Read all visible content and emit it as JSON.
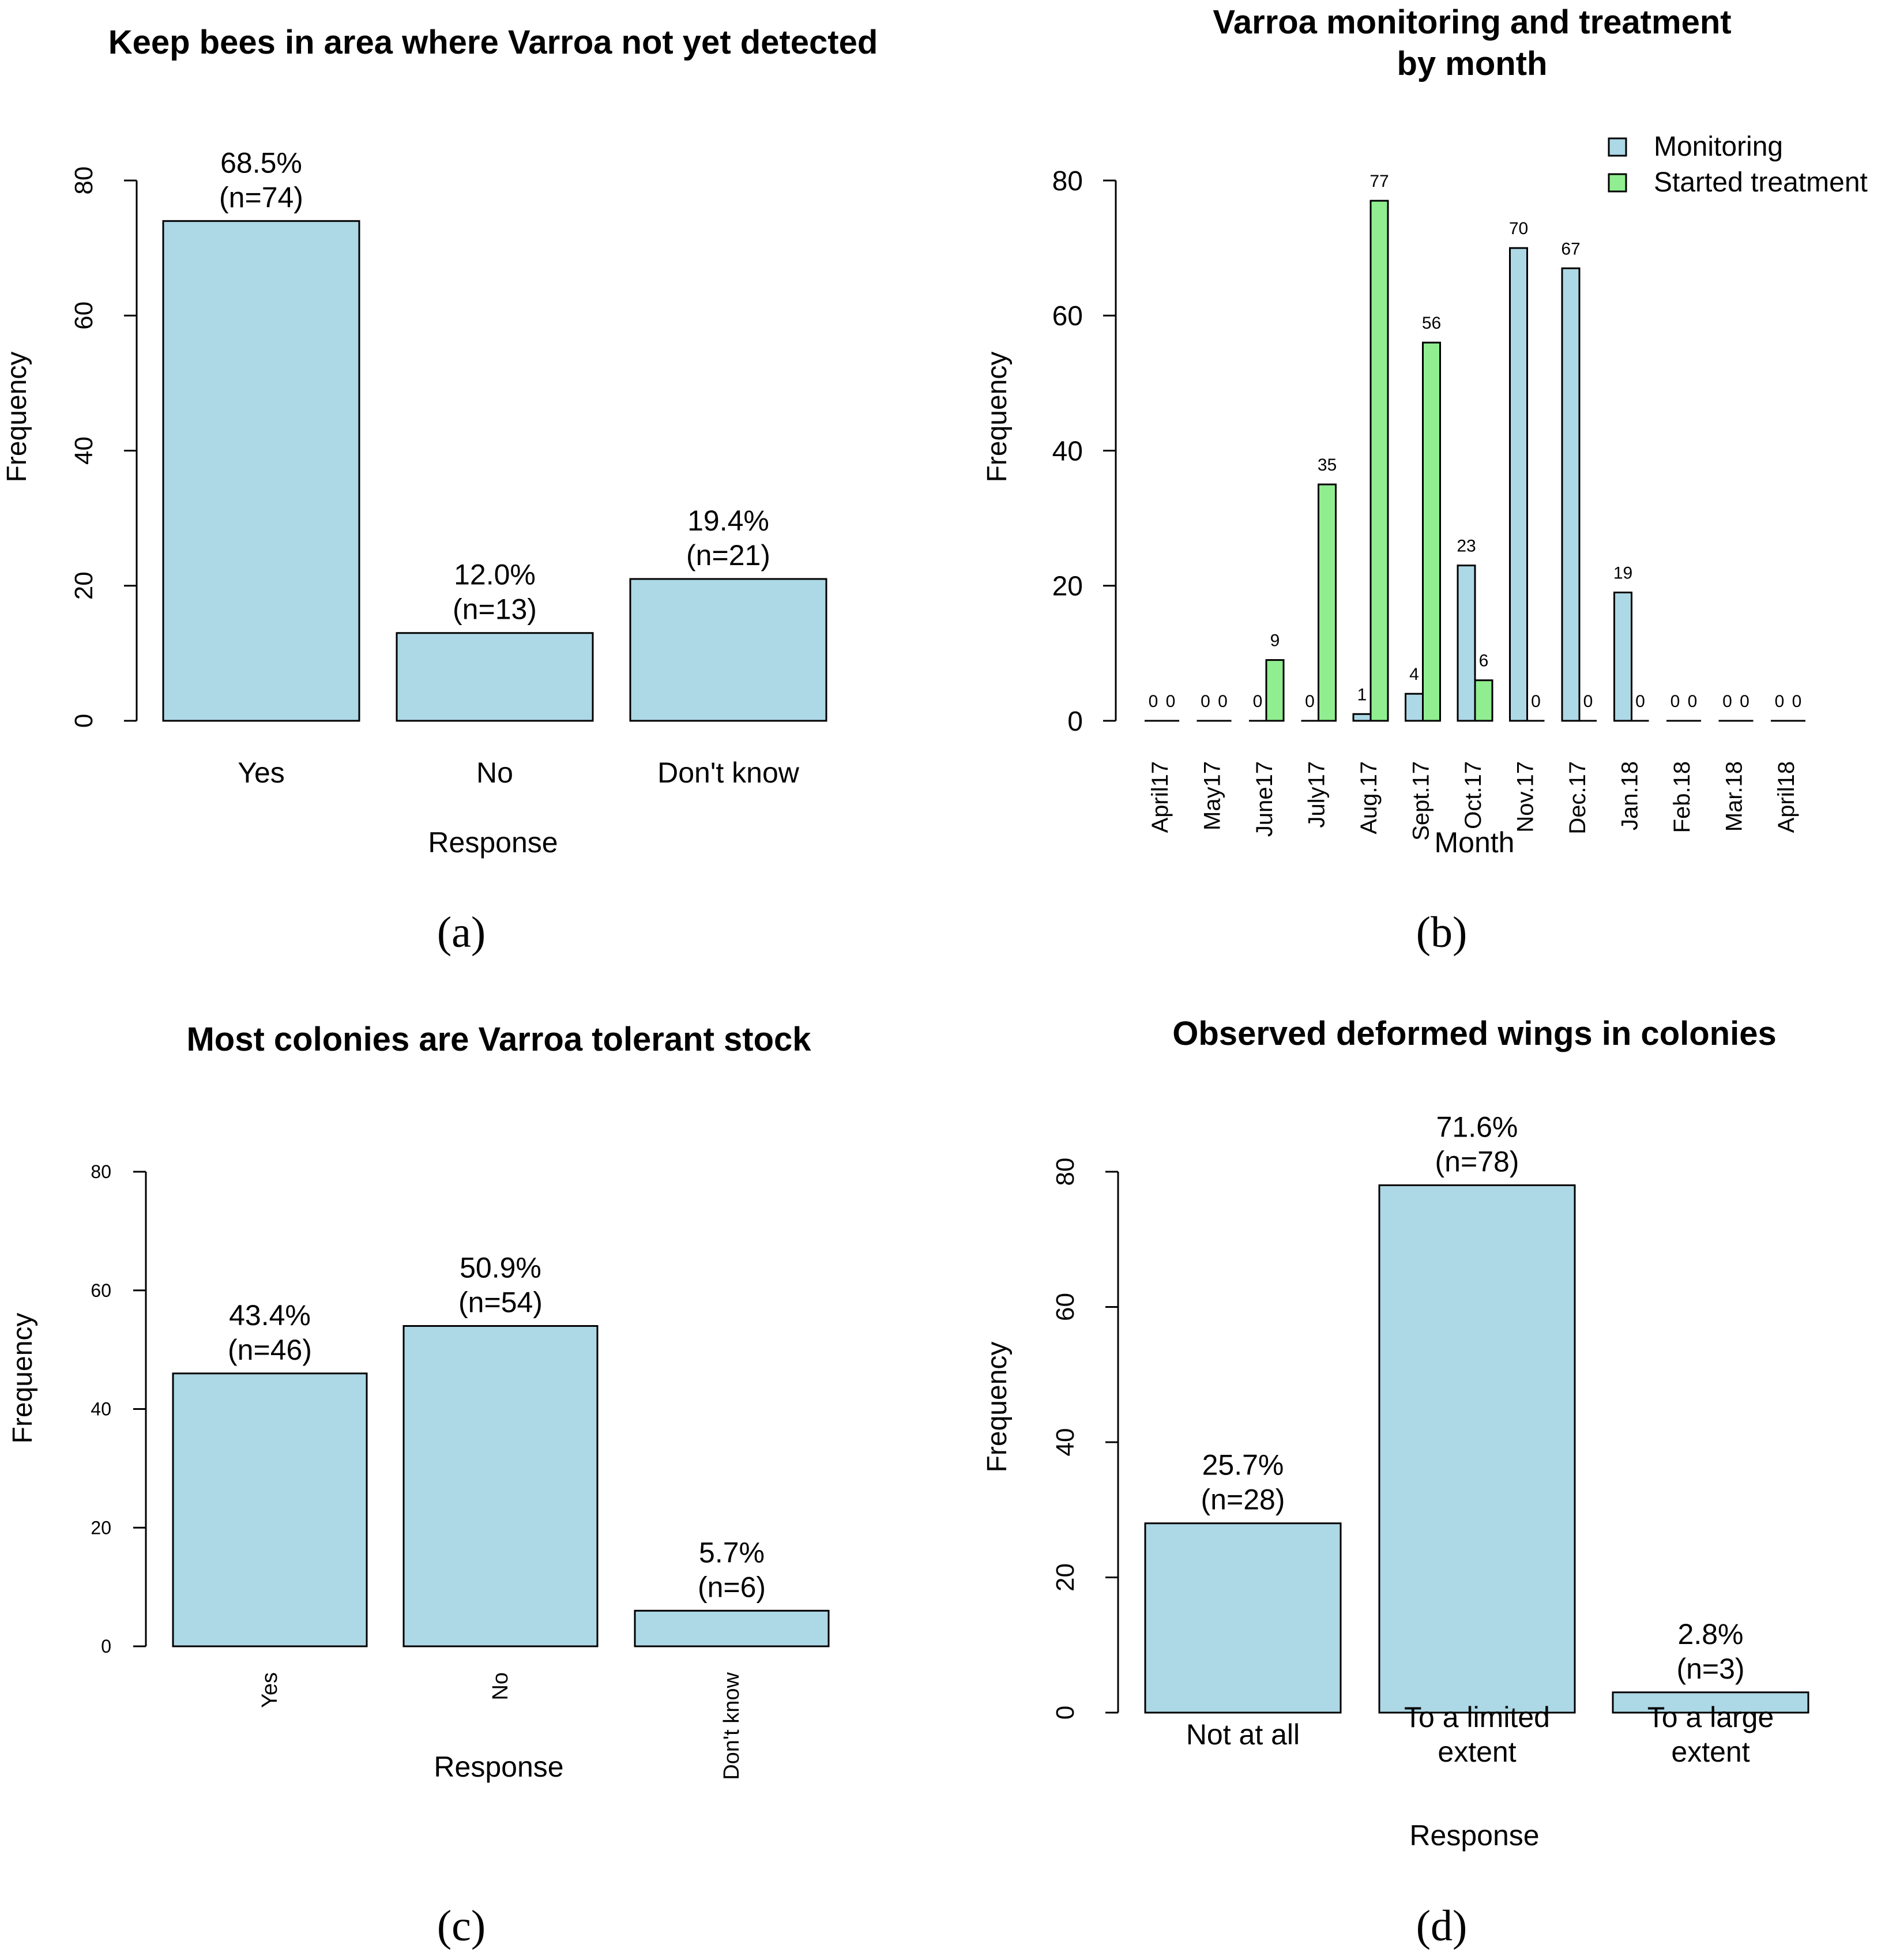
{
  "colors": {
    "monitoring": "#add8e6",
    "treatment": "#90ee90",
    "stroke": "#000000",
    "background": "#ffffff"
  },
  "chart_data": [
    {
      "id": "a",
      "panel_label": "(a)",
      "type": "bar",
      "title": "Keep bees in area where Varroa not yet detected",
      "xlabel": "Response",
      "ylabel": "Frequency",
      "ylim": [
        0,
        80
      ],
      "yticks": [
        "0",
        "20",
        "40",
        "60",
        "80"
      ],
      "categories": [
        "Yes",
        "No",
        "Don't know"
      ],
      "values": [
        74,
        13,
        21
      ],
      "percent_labels": [
        "68.5%",
        "12.0%",
        "19.4%"
      ],
      "n_labels": [
        "(n=74)",
        "(n=13)",
        "(n=21)"
      ]
    },
    {
      "id": "b",
      "panel_label": "(b)",
      "type": "bar",
      "title": "Varroa monitoring and treatment",
      "title_line2": "by month",
      "xlabel": "Month",
      "ylabel": "Frequency",
      "ylim": [
        0,
        80
      ],
      "yticks": [
        "0",
        "20",
        "40",
        "60",
        "80"
      ],
      "categories": [
        "April17",
        "May17",
        "June17",
        "July17",
        "Aug.17",
        "Sept.17",
        "Oct.17",
        "Nov.17",
        "Dec.17",
        "Jan.18",
        "Feb.18",
        "Mar.18",
        "April18"
      ],
      "series": [
        {
          "name": "Monitoring",
          "values": [
            0,
            0,
            0,
            0,
            1,
            4,
            23,
            70,
            67,
            19,
            0,
            0,
            0
          ]
        },
        {
          "name": "Started treatment",
          "values": [
            0,
            0,
            9,
            35,
            77,
            56,
            6,
            0,
            0,
            0,
            0,
            0,
            0
          ]
        }
      ],
      "legend": "top-right"
    },
    {
      "id": "c",
      "panel_label": "(c)",
      "type": "bar",
      "title": "Most colonies are Varroa tolerant stock",
      "xlabel": "Response",
      "ylabel": "Frequency",
      "ylim": [
        0,
        80
      ],
      "yticks": [
        "0",
        "20",
        "40",
        "60",
        "80"
      ],
      "categories": [
        "Yes",
        "No",
        "Don't know"
      ],
      "values": [
        46,
        54,
        6
      ],
      "percent_labels": [
        "43.4%",
        "50.9%",
        "5.7%"
      ],
      "n_labels": [
        "(n=46)",
        "(n=54)",
        "(n=6)"
      ]
    },
    {
      "id": "d",
      "panel_label": "(d)",
      "type": "bar",
      "title": "Observed deformed wings in colonies",
      "xlabel": "Response",
      "ylabel": "Frequency",
      "ylim": [
        0,
        80
      ],
      "yticks": [
        "0",
        "20",
        "40",
        "60",
        "80"
      ],
      "categories": [
        [
          "Not at all"
        ],
        [
          "To a limited",
          "extent"
        ],
        [
          "To a large",
          "extent"
        ]
      ],
      "values": [
        28,
        78,
        3
      ],
      "percent_labels": [
        "25.7%",
        "71.6%",
        "2.8%"
      ],
      "n_labels": [
        "(n=28)",
        "(n=78)",
        "(n=3)"
      ]
    }
  ]
}
